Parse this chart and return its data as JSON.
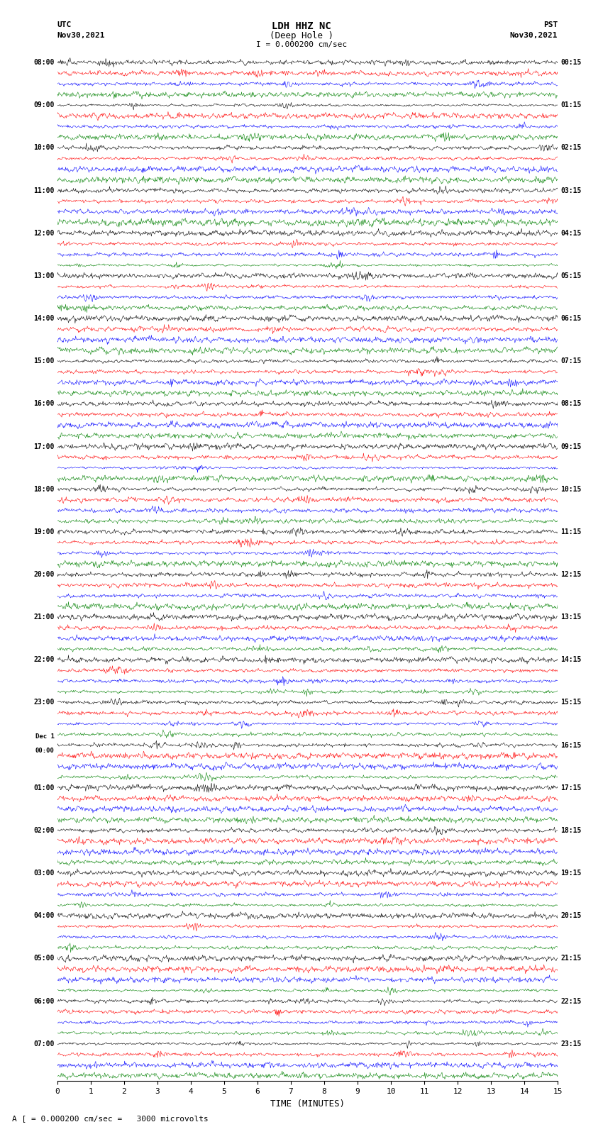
{
  "title_line1": "LDH HHZ NC",
  "title_line2": "(Deep Hole )",
  "title_scale": "I = 0.000200 cm/sec",
  "left_header_line1": "UTC",
  "left_header_line2": "Nov30,2021",
  "right_header_line1": "PST",
  "right_header_line2": "Nov30,2021",
  "xlabel": "TIME (MINUTES)",
  "footnote": "A [ = 0.000200 cm/sec =   3000 microvolts",
  "left_times": [
    "08:00",
    "09:00",
    "10:00",
    "11:00",
    "12:00",
    "13:00",
    "14:00",
    "15:00",
    "16:00",
    "17:00",
    "18:00",
    "19:00",
    "20:00",
    "21:00",
    "22:00",
    "23:00",
    "Dec 1\n00:00",
    "01:00",
    "02:00",
    "03:00",
    "04:00",
    "05:00",
    "06:00",
    "07:00"
  ],
  "right_times": [
    "00:15",
    "01:15",
    "02:15",
    "03:15",
    "04:15",
    "05:15",
    "06:15",
    "07:15",
    "08:15",
    "09:15",
    "10:15",
    "11:15",
    "12:15",
    "13:15",
    "14:15",
    "15:15",
    "16:15",
    "17:15",
    "18:15",
    "19:15",
    "20:15",
    "21:15",
    "22:15",
    "23:15"
  ],
  "n_hours": 24,
  "traces_per_hour": 4,
  "colors": [
    "black",
    "red",
    "blue",
    "green"
  ],
  "bg_color": "white",
  "trace_amplitude": 0.38,
  "special_hour": 3,
  "xticks": [
    0,
    1,
    2,
    3,
    4,
    5,
    6,
    7,
    8,
    9,
    10,
    11,
    12,
    13,
    14,
    15
  ],
  "xmax": 15
}
